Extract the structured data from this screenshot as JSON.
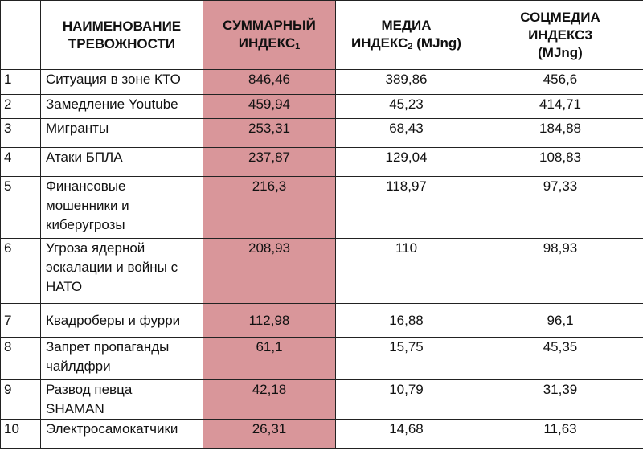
{
  "colors": {
    "highlight": "#d9969a",
    "border": "#222222"
  },
  "headers": {
    "num": "",
    "name": "НАИМЕНОВАНИЕ ТРЕВОЖНОСТИ",
    "total_main": "СУММАРНЫЙ ИНДЕКС",
    "total_sup": "1",
    "media_main": "МЕДИА ИНДЕКС",
    "media_sup": "2",
    "media_unit": " (MJng)",
    "social_main": "СОЦМЕДИА ИНДЕКС3",
    "social_unit": "(MJng)"
  },
  "rows": [
    {
      "num": "1",
      "name": "Ситуация в зоне КТО",
      "total": "846,46",
      "media": "389,86",
      "social": "456,6"
    },
    {
      "num": "2",
      "name": "Замедление Youtube",
      "total": "459,94",
      "media": "45,23",
      "social": "414,71"
    },
    {
      "num": "3",
      "name": "Мигранты",
      "total": "253,31",
      "media": "68,43",
      "social": "184,88"
    },
    {
      "num": "4",
      "name": "Атаки БПЛА",
      "total": "237,87",
      "media": "129,04",
      "social": "108,83"
    },
    {
      "num": "5",
      "name": "Финансовые мошенники и киберугрозы",
      "total": "216,3",
      "media": "118,97",
      "social": "97,33"
    },
    {
      "num": "6",
      "name": "Угроза ядерной эскалации и войны с НАТО",
      "total": "208,93",
      "media": "110",
      "social": "98,93"
    },
    {
      "num": "7",
      "name": "Квадроберы и фурри",
      "total": "112,98",
      "media": "16,88",
      "social": "96,1"
    },
    {
      "num": "8",
      "name": "Запрет пропаганды чайлдфри",
      "total": "61,1",
      "media": "15,75",
      "social": "45,35"
    },
    {
      "num": "9",
      "name": "Развод певца SHAMAN",
      "total": "42,18",
      "media": "10,79",
      "social": "31,39"
    },
    {
      "num": "10",
      "name": "Электросамокатчики",
      "total": "26,31",
      "media": "14,68",
      "social": "11,63"
    }
  ]
}
